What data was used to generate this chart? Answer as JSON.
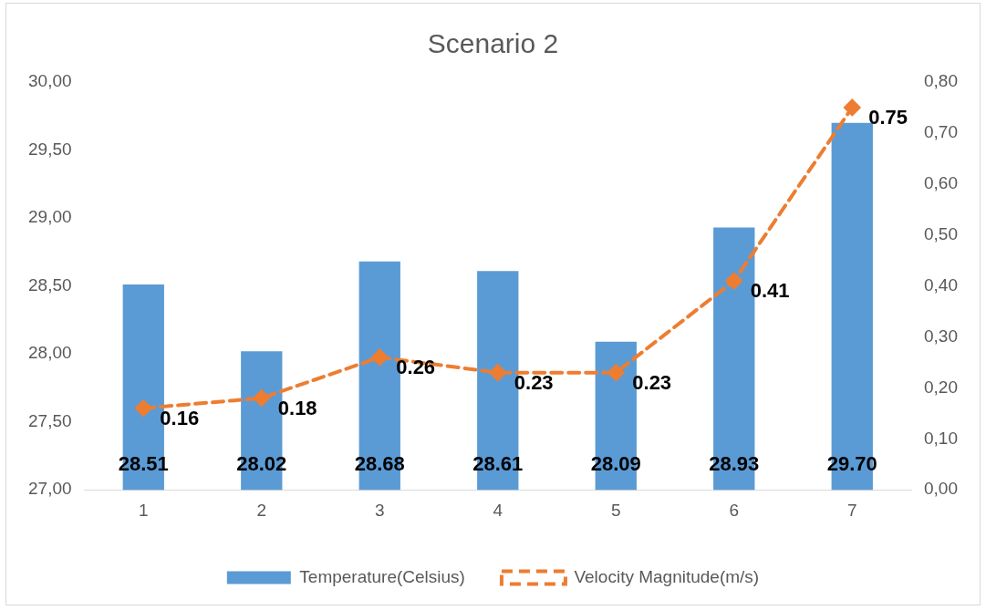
{
  "chart_data": {
    "type": "bar",
    "title": "Scenario 2",
    "categories": [
      "1",
      "2",
      "3",
      "4",
      "5",
      "6",
      "7"
    ],
    "series": [
      {
        "name": "Temperature(Celsius)",
        "color": "#5b9bd5",
        "values": [
          28.51,
          28.02,
          28.68,
          28.61,
          28.09,
          28.93,
          29.7
        ],
        "value_labels": [
          "28.51",
          "28.02",
          "28.68",
          "28.61",
          "28.09",
          "28.93",
          "29.70"
        ]
      },
      {
        "name": "Velocity Magnitude(m/s)",
        "type": "line",
        "axis": "y2",
        "color": "#ed7d31",
        "marker": "diamond",
        "line_style": "dashed",
        "values": [
          0.16,
          0.18,
          0.26,
          0.23,
          0.23,
          0.41,
          0.75
        ],
        "value_labels": [
          "0.16",
          "0.18",
          "0.26",
          "0.23",
          "0.23",
          "0.41",
          "0.75"
        ]
      }
    ],
    "ylim": [
      27,
      30
    ],
    "yticks": [
      {
        "value": 27,
        "label": "27,00"
      },
      {
        "value": 27.5,
        "label": "27,50"
      },
      {
        "value": 28,
        "label": "28,00"
      },
      {
        "value": 28.5,
        "label": "28,50"
      },
      {
        "value": 29,
        "label": "29,00"
      },
      {
        "value": 29.5,
        "label": "29,50"
      },
      {
        "value": 30,
        "label": "30,00"
      }
    ],
    "y2lim": [
      0,
      0.8
    ],
    "y2ticks": [
      {
        "value": 0,
        "label": "0,00"
      },
      {
        "value": 0.1,
        "label": "0,10"
      },
      {
        "value": 0.2,
        "label": "0,20"
      },
      {
        "value": 0.3,
        "label": "0,30"
      },
      {
        "value": 0.4,
        "label": "0,40"
      },
      {
        "value": 0.5,
        "label": "0,50"
      },
      {
        "value": 0.6,
        "label": "0,60"
      },
      {
        "value": 0.7,
        "label": "0,70"
      },
      {
        "value": 0.8,
        "label": "0,80"
      }
    ],
    "grid": false,
    "legend": "bottom"
  }
}
